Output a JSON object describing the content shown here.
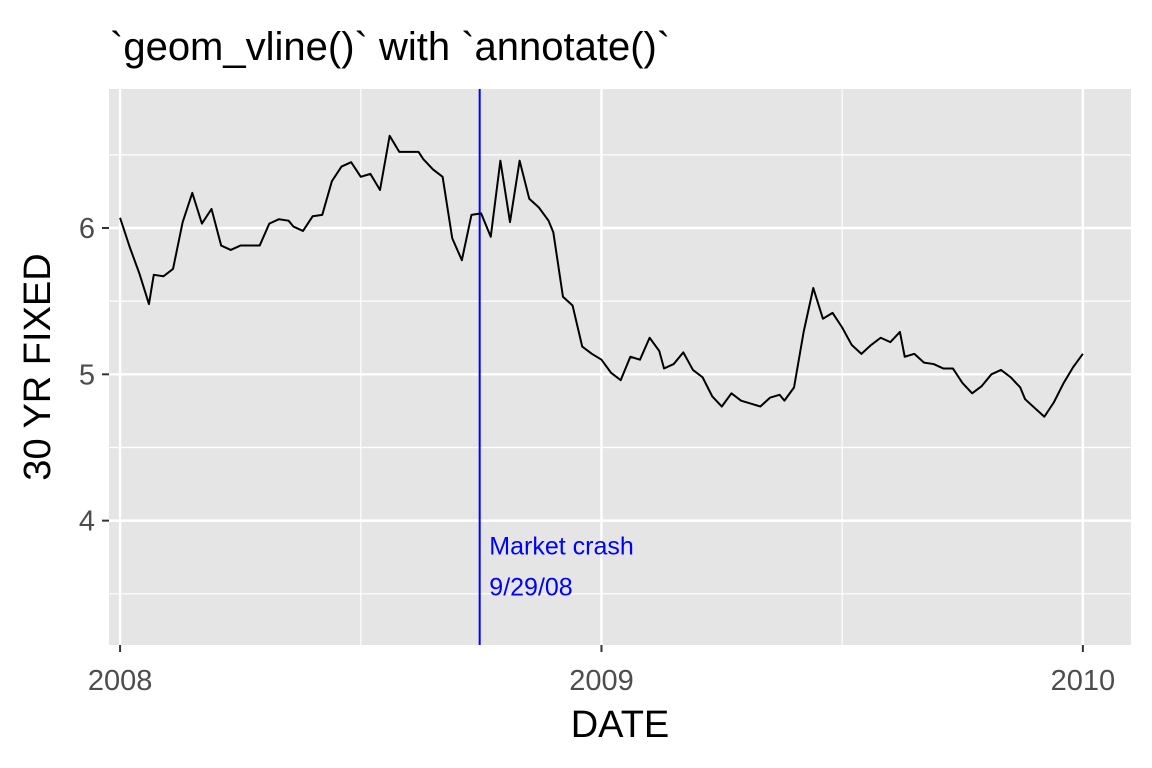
{
  "chart_data": {
    "type": "line",
    "title": "`geom_vline()` with `annotate()`",
    "xlabel": "DATE",
    "ylabel": "30 YR FIXED",
    "xlim": [
      2007.977,
      2010.1
    ],
    "ylim": [
      3.15,
      6.95
    ],
    "x_ticks": [
      2008,
      2009,
      2010
    ],
    "x_minor_ticks": [
      2008.5,
      2009.5
    ],
    "y_ticks": [
      4,
      5,
      6
    ],
    "y_minor_ticks": [
      3.5,
      4.5,
      5.5,
      6.5
    ],
    "grid": true,
    "background": "#e5e5e5",
    "line_color": "#000000",
    "series": [
      {
        "x": [
          2008.0,
          2008.02,
          2008.04,
          2008.06,
          2008.07,
          2008.09,
          2008.11,
          2008.13,
          2008.15,
          2008.17,
          2008.19,
          2008.21,
          2008.23,
          2008.25,
          2008.27,
          2008.29,
          2008.31,
          2008.33,
          2008.35,
          2008.36,
          2008.38,
          2008.4,
          2008.42,
          2008.44,
          2008.46,
          2008.48,
          2008.5,
          2008.52,
          2008.54,
          2008.56,
          2008.58,
          2008.6,
          2008.62,
          2008.63,
          2008.65,
          2008.67,
          2008.69,
          2008.71,
          2008.73,
          2008.75,
          2008.77,
          2008.79,
          2008.81,
          2008.83,
          2008.85,
          2008.87,
          2008.89,
          2008.9,
          2008.92,
          2008.94,
          2008.96,
          2008.98,
          2009.0,
          2009.02,
          2009.04,
          2009.06,
          2009.08,
          2009.1,
          2009.12,
          2009.13,
          2009.15,
          2009.17,
          2009.19,
          2009.21,
          2009.23,
          2009.25,
          2009.27,
          2009.29,
          2009.31,
          2009.33,
          2009.35,
          2009.37,
          2009.38,
          2009.4,
          2009.42,
          2009.44,
          2009.46,
          2009.48,
          2009.5,
          2009.52,
          2009.54,
          2009.56,
          2009.58,
          2009.6,
          2009.62,
          2009.63,
          2009.65,
          2009.67,
          2009.69,
          2009.71,
          2009.73,
          2009.75,
          2009.77,
          2009.79,
          2009.81,
          2009.83,
          2009.85,
          2009.87,
          2009.88,
          2009.9,
          2009.92,
          2009.94,
          2009.96,
          2009.98,
          2010.0
        ],
        "values": [
          6.07,
          5.87,
          5.69,
          5.48,
          5.68,
          5.67,
          5.72,
          6.04,
          6.24,
          6.03,
          6.13,
          5.88,
          5.85,
          5.88,
          5.88,
          5.88,
          6.03,
          6.06,
          6.05,
          6.01,
          5.98,
          6.08,
          6.09,
          6.32,
          6.42,
          6.45,
          6.35,
          6.37,
          6.26,
          6.63,
          6.52,
          6.52,
          6.52,
          6.47,
          6.4,
          6.35,
          5.93,
          5.78,
          6.09,
          6.1,
          5.94,
          6.46,
          6.04,
          6.46,
          6.2,
          6.14,
          6.05,
          5.97,
          5.53,
          5.47,
          5.19,
          5.14,
          5.1,
          5.01,
          4.96,
          5.12,
          5.1,
          5.25,
          5.16,
          5.04,
          5.07,
          5.15,
          5.03,
          4.98,
          4.85,
          4.78,
          4.87,
          4.82,
          4.8,
          4.78,
          4.84,
          4.86,
          4.82,
          4.91,
          5.29,
          5.59,
          5.38,
          5.42,
          5.32,
          5.2,
          5.14,
          5.2,
          5.25,
          5.22,
          5.29,
          5.12,
          5.14,
          5.08,
          5.07,
          5.04,
          5.04,
          4.94,
          4.87,
          4.92,
          5.0,
          5.03,
          4.98,
          4.91,
          4.83,
          4.77,
          4.71,
          4.81,
          4.94,
          5.05,
          5.14
        ]
      }
    ],
    "vline": {
      "x": 2008.747,
      "color": "#0000ff"
    },
    "annotation": {
      "lines": [
        "Market crash",
        "9/29/08"
      ],
      "x": 2008.767,
      "y": [
        3.83,
        3.55
      ],
      "color": "#0000ff"
    }
  }
}
